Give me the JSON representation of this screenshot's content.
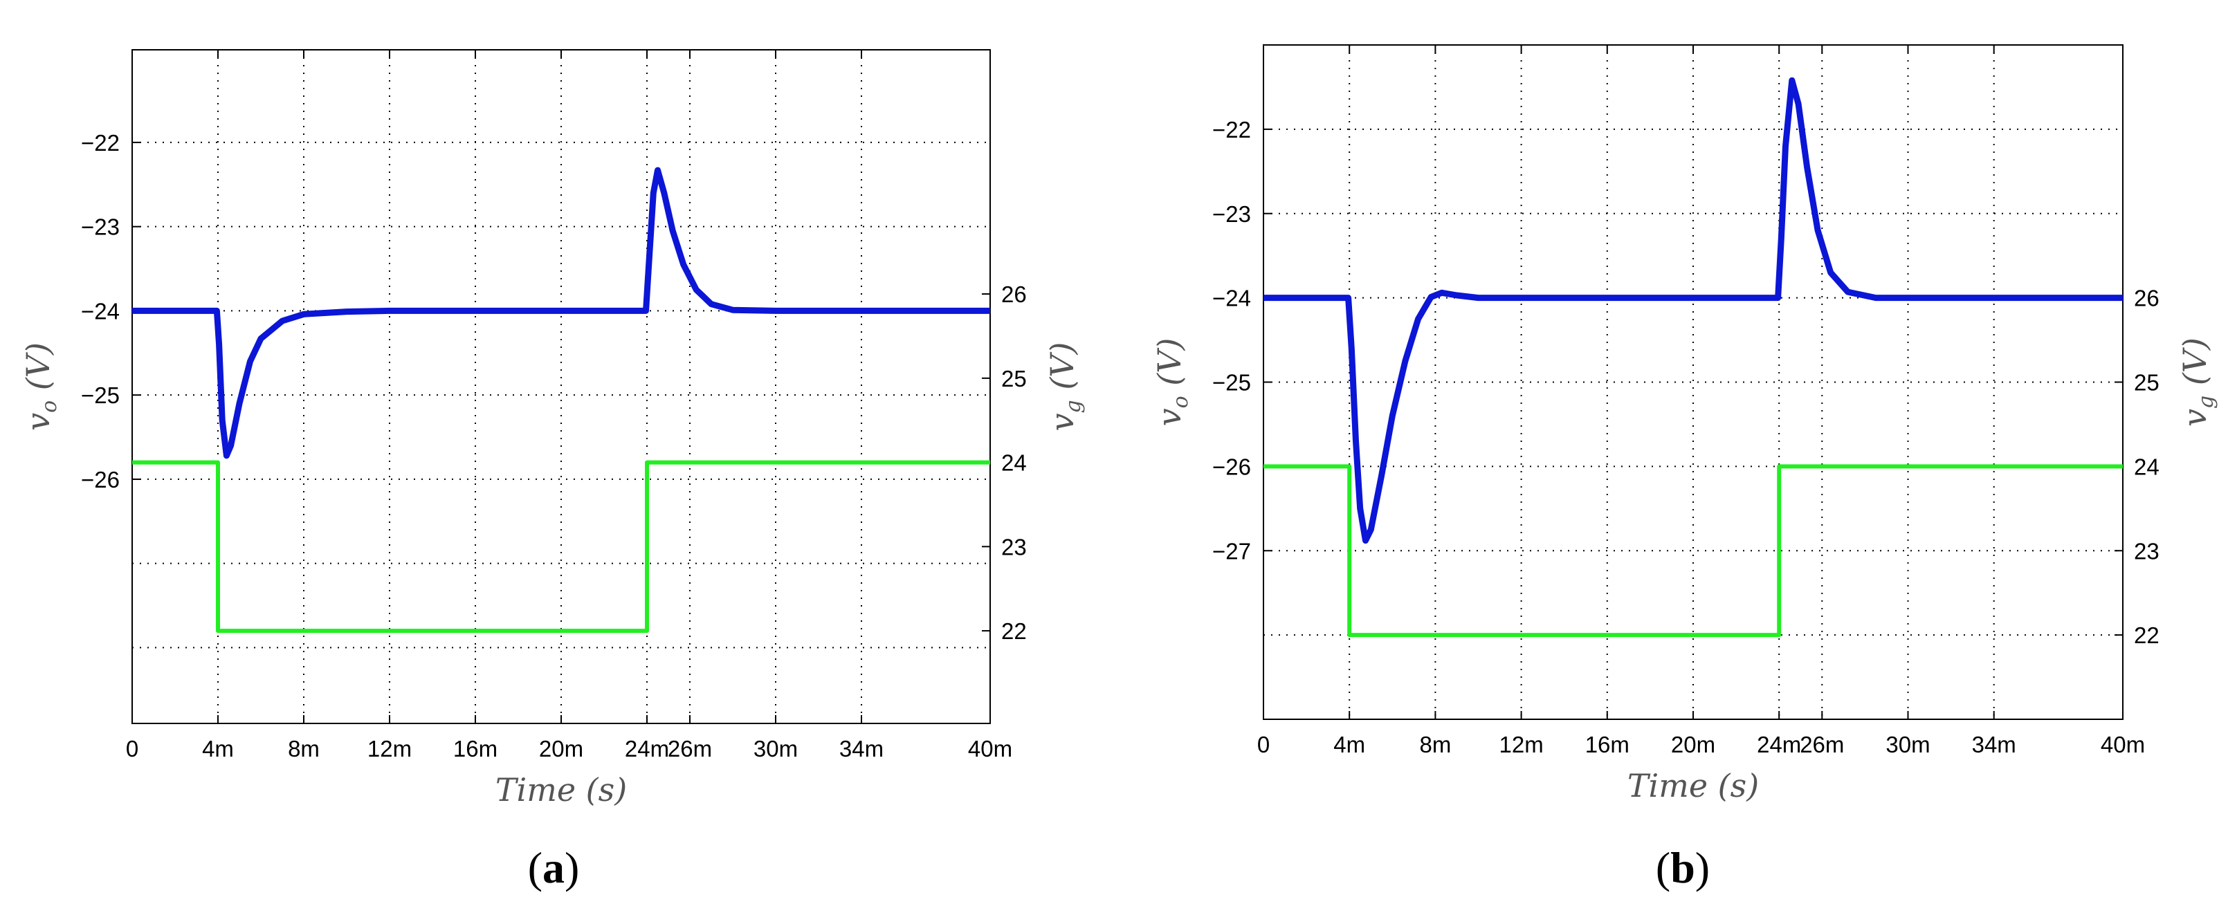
{
  "figure": {
    "panels": [
      {
        "label_open": "(",
        "label_letter": "a",
        "label_close": ")"
      },
      {
        "label_open": "(",
        "label_letter": "b",
        "label_close": ")"
      }
    ]
  },
  "chart_data": [
    {
      "type": "line",
      "panel": "a",
      "xlabel_main": "Time",
      "xlabel_unit": "(s)",
      "ylabel_left_var": "v",
      "ylabel_left_sub": "o",
      "ylabel_left_unit": "(V)",
      "ylabel_right_var": "v",
      "ylabel_right_sub": "g",
      "ylabel_right_unit": "(V)",
      "x_ticks": [
        0,
        4,
        8,
        12,
        16,
        20,
        24,
        26,
        30,
        34,
        40
      ],
      "x_tick_labels": [
        "0",
        "4m",
        "8m",
        "12m",
        "16m",
        "20m",
        "24m",
        "26m",
        "30m",
        "34m",
        "40m"
      ],
      "xlim": [
        0,
        40
      ],
      "y_left_lim": [
        -28.9,
        -20.9
      ],
      "y_left_ticks": [
        -22,
        -23,
        -24,
        -25,
        -26
      ],
      "y_left_tick_labels": [
        "−22",
        "−23",
        "−24",
        "−25",
        "−26"
      ],
      "y_right_lim": [
        20.9,
        28.9
      ],
      "y_right_ticks": [
        26,
        25,
        24,
        23,
        22
      ],
      "y_right_tick_labels": [
        "26",
        "25",
        "24",
        "23",
        "22"
      ],
      "grid_y_left": [
        -22,
        -23,
        -24,
        -25,
        -26,
        -27,
        -28
      ],
      "grid": true,
      "series": [
        {
          "axis": "left",
          "color": "#0b16d6",
          "points": [
            [
              0,
              -24
            ],
            [
              3.95,
              -24
            ],
            [
              4.05,
              -24.4
            ],
            [
              4.2,
              -25.3
            ],
            [
              4.4,
              -25.72
            ],
            [
              4.6,
              -25.6
            ],
            [
              5,
              -25.1
            ],
            [
              5.5,
              -24.6
            ],
            [
              6,
              -24.33
            ],
            [
              7,
              -24.12
            ],
            [
              8,
              -24.04
            ],
            [
              10,
              -24.01
            ],
            [
              12,
              -24
            ],
            [
              23.95,
              -24
            ],
            [
              24.1,
              -23.4
            ],
            [
              24.3,
              -22.6
            ],
            [
              24.5,
              -22.33
            ],
            [
              24.8,
              -22.6
            ],
            [
              25.2,
              -23.05
            ],
            [
              25.7,
              -23.45
            ],
            [
              26.3,
              -23.75
            ],
            [
              27,
              -23.92
            ],
            [
              28,
              -23.99
            ],
            [
              30,
              -24
            ],
            [
              40,
              -24
            ]
          ]
        },
        {
          "axis": "right",
          "color": "#22ee22",
          "points": [
            [
              0,
              24
            ],
            [
              4,
              24
            ],
            [
              4,
              22
            ],
            [
              24,
              22
            ],
            [
              24,
              24
            ],
            [
              40,
              24
            ]
          ]
        }
      ]
    },
    {
      "type": "line",
      "panel": "b",
      "xlabel_main": "Time",
      "xlabel_unit": "(s)",
      "ylabel_left_var": "v",
      "ylabel_left_sub": "o",
      "ylabel_left_unit": "(V)",
      "ylabel_right_var": "v",
      "ylabel_right_sub": "g",
      "ylabel_right_unit": "(V)",
      "x_ticks": [
        0,
        4,
        8,
        12,
        16,
        20,
        24,
        26,
        30,
        34,
        40
      ],
      "x_tick_labels": [
        "0",
        "4m",
        "8m",
        "12m",
        "16m",
        "20m",
        "24m",
        "26m",
        "30m",
        "34m",
        "40m"
      ],
      "xlim": [
        0,
        40
      ],
      "y_left_lim": [
        -29,
        -21
      ],
      "y_left_ticks": [
        -22,
        -23,
        -24,
        -25,
        -26,
        -27
      ],
      "y_left_tick_labels": [
        "−22",
        "−23",
        "−24",
        "−25",
        "−26",
        "−27"
      ],
      "y_right_lim": [
        21,
        29
      ],
      "y_right_ticks": [
        26,
        25,
        24,
        23,
        22
      ],
      "y_right_tick_labels": [
        "26",
        "25",
        "24",
        "23",
        "22"
      ],
      "grid_y_left": [
        -22,
        -23,
        -24,
        -25,
        -26,
        -27,
        -28
      ],
      "grid": true,
      "series": [
        {
          "axis": "left",
          "color": "#0b16d6",
          "points": [
            [
              0,
              -24
            ],
            [
              3.95,
              -24
            ],
            [
              4.1,
              -24.6
            ],
            [
              4.3,
              -25.7
            ],
            [
              4.5,
              -26.5
            ],
            [
              4.75,
              -26.88
            ],
            [
              5,
              -26.75
            ],
            [
              5.5,
              -26.1
            ],
            [
              6,
              -25.4
            ],
            [
              6.6,
              -24.75
            ],
            [
              7.2,
              -24.25
            ],
            [
              7.8,
              -23.99
            ],
            [
              8.3,
              -23.94
            ],
            [
              9,
              -23.97
            ],
            [
              10,
              -24
            ],
            [
              23.95,
              -24
            ],
            [
              24.1,
              -23.3
            ],
            [
              24.3,
              -22.2
            ],
            [
              24.6,
              -21.42
            ],
            [
              24.9,
              -21.7
            ],
            [
              25.3,
              -22.45
            ],
            [
              25.8,
              -23.2
            ],
            [
              26.4,
              -23.7
            ],
            [
              27.2,
              -23.93
            ],
            [
              28.5,
              -24
            ],
            [
              40,
              -24
            ]
          ]
        },
        {
          "axis": "right",
          "color": "#22ee22",
          "points": [
            [
              0,
              24
            ],
            [
              4,
              24
            ],
            [
              4,
              22
            ],
            [
              24,
              22
            ],
            [
              24,
              24
            ],
            [
              40,
              24
            ]
          ]
        }
      ]
    }
  ]
}
